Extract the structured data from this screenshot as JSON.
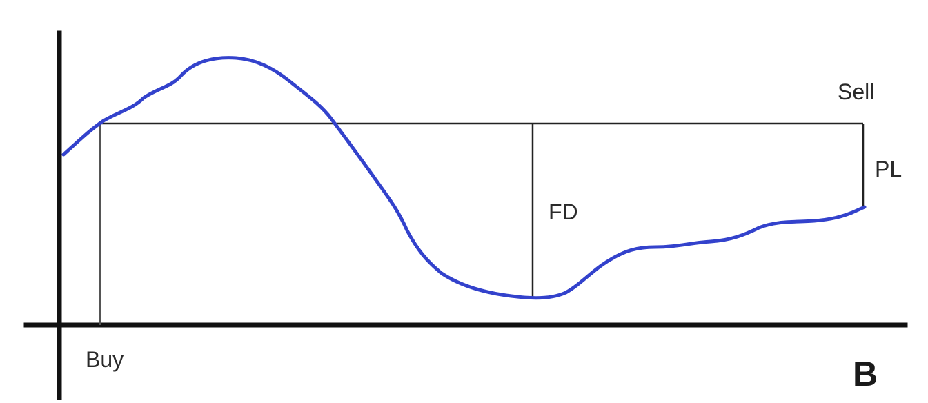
{
  "labels": {
    "buy": "Buy",
    "sell": "Sell",
    "fd": "FD",
    "pl": "PL",
    "panel": "B"
  },
  "colors": {
    "price_curve": "#3342cc",
    "axes": "#111111",
    "guides": "#222222",
    "text": "#2a2a2a",
    "background": "#ffffff"
  }
}
